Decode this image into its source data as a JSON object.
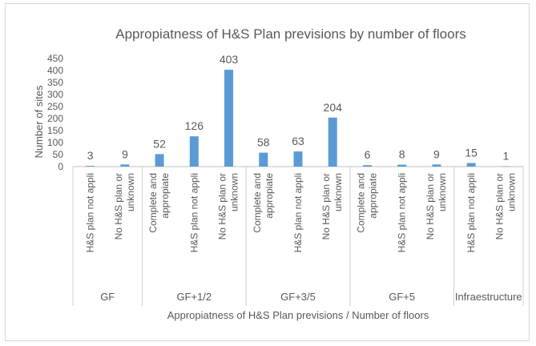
{
  "chart_data": {
    "type": "bar",
    "title": "Appropiatness of H&S Plan previsions by number of floors",
    "xlabel": "Appropiatness of H&S Plan previsions / Number of floors",
    "ylabel": "Number of sites",
    "ylim": [
      0,
      450
    ],
    "yticks": [
      "0",
      "50",
      "100",
      "150",
      "200",
      "250",
      "300",
      "350",
      "400",
      "450"
    ],
    "grid": false,
    "legend": "none",
    "bar_color": "#5b9bd5",
    "groups": [
      {
        "label": "GF",
        "bars": [
          {
            "label": "H&S plan not appli",
            "value": 3
          },
          {
            "label": "No H&S plan or unknown",
            "value": 9
          }
        ]
      },
      {
        "label": "GF+1/2",
        "bars": [
          {
            "label": "Complete and appropiate",
            "value": 52
          },
          {
            "label": "H&S plan not appli",
            "value": 126
          },
          {
            "label": "No H&S plan or unknown",
            "value": 403
          }
        ]
      },
      {
        "label": "GF+3/5",
        "bars": [
          {
            "label": "Complete and appropiate",
            "value": 58
          },
          {
            "label": "H&S plan not appli",
            "value": 63
          },
          {
            "label": "No H&S plan or unknown",
            "value": 204
          }
        ]
      },
      {
        "label": "GF+5",
        "bars": [
          {
            "label": "Complete and appropiate",
            "value": 6
          },
          {
            "label": "H&S plan not appli",
            "value": 8
          },
          {
            "label": "No H&S plan or unknown",
            "value": 9
          }
        ]
      },
      {
        "label": "Infraestructure",
        "bars": [
          {
            "label": "H&S plan not appli",
            "value": 15
          },
          {
            "label": "No H&S plan or unknown",
            "value": 1
          }
        ]
      }
    ]
  }
}
